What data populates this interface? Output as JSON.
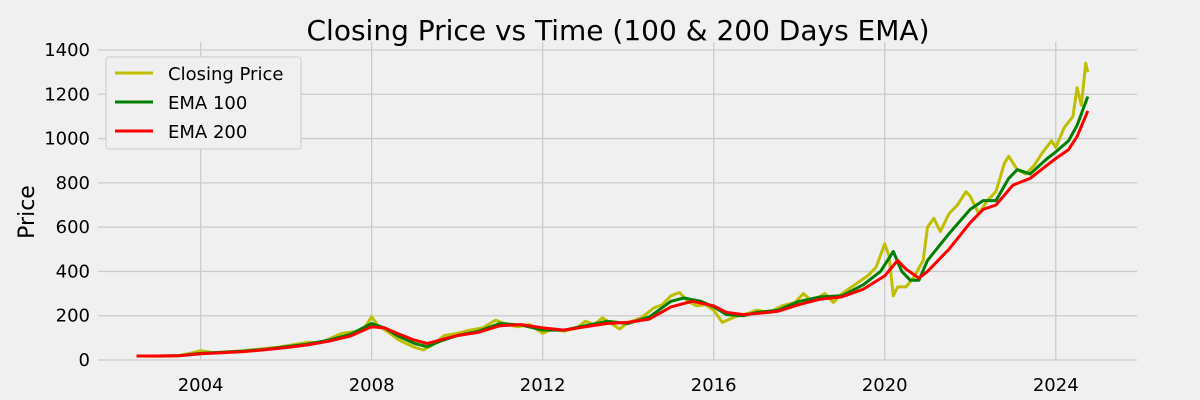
{
  "chart_data": {
    "type": "line",
    "title": "Closing Price vs Time (100 & 200 Days EMA)",
    "xlabel": "",
    "ylabel": "Price",
    "xlim": [
      2001.6,
      2025.9
    ],
    "ylim": [
      -20,
      1400
    ],
    "xticks": [
      2004,
      2008,
      2012,
      2016,
      2020,
      2024
    ],
    "yticks": [
      0,
      200,
      400,
      600,
      800,
      1000,
      1200,
      1400
    ],
    "grid": true,
    "legend": {
      "placement": "top-left",
      "entries": [
        "Closing Price",
        "EMA 100",
        "EMA 200"
      ]
    },
    "series": [
      {
        "name": "Closing Price",
        "color": "#bfbf00",
        "points": [
          [
            2002.5,
            18
          ],
          [
            2003.0,
            17
          ],
          [
            2003.5,
            20
          ],
          [
            2003.8,
            32
          ],
          [
            2004.0,
            42
          ],
          [
            2004.3,
            33
          ],
          [
            2004.7,
            38
          ],
          [
            2005.0,
            42
          ],
          [
            2005.5,
            52
          ],
          [
            2005.8,
            58
          ],
          [
            2006.2,
            70
          ],
          [
            2006.5,
            80
          ],
          [
            2006.8,
            78
          ],
          [
            2007.0,
            95
          ],
          [
            2007.3,
            120
          ],
          [
            2007.6,
            128
          ],
          [
            2007.8,
            135
          ],
          [
            2008.0,
            195
          ],
          [
            2008.15,
            155
          ],
          [
            2008.4,
            125
          ],
          [
            2008.6,
            95
          ],
          [
            2008.8,
            75
          ],
          [
            2009.0,
            58
          ],
          [
            2009.2,
            45
          ],
          [
            2009.4,
            65
          ],
          [
            2009.7,
            110
          ],
          [
            2010.0,
            120
          ],
          [
            2010.3,
            135
          ],
          [
            2010.6,
            145
          ],
          [
            2010.9,
            180
          ],
          [
            2011.1,
            165
          ],
          [
            2011.4,
            150
          ],
          [
            2011.7,
            160
          ],
          [
            2012.0,
            120
          ],
          [
            2012.2,
            140
          ],
          [
            2012.5,
            130
          ],
          [
            2012.8,
            145
          ],
          [
            2013.0,
            175
          ],
          [
            2013.2,
            160
          ],
          [
            2013.4,
            190
          ],
          [
            2013.6,
            165
          ],
          [
            2013.8,
            140
          ],
          [
            2014.0,
            170
          ],
          [
            2014.3,
            190
          ],
          [
            2014.6,
            235
          ],
          [
            2014.8,
            250
          ],
          [
            2015.0,
            290
          ],
          [
            2015.2,
            305
          ],
          [
            2015.4,
            265
          ],
          [
            2015.6,
            245
          ],
          [
            2015.8,
            250
          ],
          [
            2016.0,
            225
          ],
          [
            2016.2,
            170
          ],
          [
            2016.5,
            195
          ],
          [
            2016.8,
            210
          ],
          [
            2017.0,
            225
          ],
          [
            2017.3,
            215
          ],
          [
            2017.6,
            245
          ],
          [
            2017.9,
            260
          ],
          [
            2018.1,
            300
          ],
          [
            2018.3,
            265
          ],
          [
            2018.6,
            300
          ],
          [
            2018.8,
            260
          ],
          [
            2019.0,
            300
          ],
          [
            2019.3,
            340
          ],
          [
            2019.6,
            380
          ],
          [
            2019.8,
            420
          ],
          [
            2020.0,
            525
          ],
          [
            2020.1,
            470
          ],
          [
            2020.2,
            290
          ],
          [
            2020.3,
            330
          ],
          [
            2020.5,
            330
          ],
          [
            2020.7,
            380
          ],
          [
            2020.9,
            450
          ],
          [
            2021.0,
            600
          ],
          [
            2021.15,
            640
          ],
          [
            2021.3,
            580
          ],
          [
            2021.5,
            660
          ],
          [
            2021.7,
            700
          ],
          [
            2021.9,
            760
          ],
          [
            2022.0,
            740
          ],
          [
            2022.2,
            660
          ],
          [
            2022.4,
            720
          ],
          [
            2022.6,
            760
          ],
          [
            2022.8,
            890
          ],
          [
            2022.9,
            920
          ],
          [
            2023.1,
            860
          ],
          [
            2023.3,
            840
          ],
          [
            2023.5,
            880
          ],
          [
            2023.7,
            940
          ],
          [
            2023.9,
            990
          ],
          [
            2024.0,
            960
          ],
          [
            2024.2,
            1050
          ],
          [
            2024.4,
            1100
          ],
          [
            2024.5,
            1230
          ],
          [
            2024.6,
            1150
          ],
          [
            2024.7,
            1340
          ],
          [
            2024.75,
            1300
          ]
        ]
      },
      {
        "name": "EMA 100",
        "color": "#008000",
        "points": [
          [
            2002.5,
            18
          ],
          [
            2003.0,
            18
          ],
          [
            2003.5,
            20
          ],
          [
            2004.0,
            30
          ],
          [
            2004.5,
            35
          ],
          [
            2005.0,
            40
          ],
          [
            2005.5,
            48
          ],
          [
            2006.0,
            60
          ],
          [
            2006.5,
            72
          ],
          [
            2007.0,
            90
          ],
          [
            2007.5,
            115
          ],
          [
            2008.0,
            165
          ],
          [
            2008.3,
            145
          ],
          [
            2008.6,
            110
          ],
          [
            2009.0,
            75
          ],
          [
            2009.3,
            60
          ],
          [
            2009.6,
            85
          ],
          [
            2010.0,
            110
          ],
          [
            2010.5,
            130
          ],
          [
            2011.0,
            165
          ],
          [
            2011.5,
            158
          ],
          [
            2012.0,
            135
          ],
          [
            2012.5,
            135
          ],
          [
            2013.0,
            155
          ],
          [
            2013.5,
            175
          ],
          [
            2014.0,
            165
          ],
          [
            2014.5,
            195
          ],
          [
            2015.0,
            265
          ],
          [
            2015.3,
            280
          ],
          [
            2015.7,
            265
          ],
          [
            2016.0,
            240
          ],
          [
            2016.3,
            205
          ],
          [
            2016.7,
            200
          ],
          [
            2017.0,
            215
          ],
          [
            2017.5,
            225
          ],
          [
            2018.0,
            265
          ],
          [
            2018.5,
            285
          ],
          [
            2019.0,
            290
          ],
          [
            2019.5,
            340
          ],
          [
            2019.9,
            400
          ],
          [
            2020.2,
            490
          ],
          [
            2020.4,
            400
          ],
          [
            2020.6,
            360
          ],
          [
            2020.8,
            360
          ],
          [
            2021.0,
            450
          ],
          [
            2021.5,
            570
          ],
          [
            2022.0,
            680
          ],
          [
            2022.3,
            720
          ],
          [
            2022.6,
            720
          ],
          [
            2022.9,
            820
          ],
          [
            2023.1,
            860
          ],
          [
            2023.4,
            840
          ],
          [
            2023.8,
            910
          ],
          [
            2024.0,
            940
          ],
          [
            2024.3,
            990
          ],
          [
            2024.5,
            1060
          ],
          [
            2024.75,
            1190
          ]
        ]
      },
      {
        "name": "EMA 200",
        "color": "#ff0000",
        "points": [
          [
            2002.5,
            18
          ],
          [
            2003.0,
            18
          ],
          [
            2003.5,
            19
          ],
          [
            2004.0,
            28
          ],
          [
            2004.5,
            33
          ],
          [
            2005.0,
            38
          ],
          [
            2005.5,
            46
          ],
          [
            2006.0,
            56
          ],
          [
            2006.5,
            68
          ],
          [
            2007.0,
            85
          ],
          [
            2007.5,
            108
          ],
          [
            2008.0,
            150
          ],
          [
            2008.3,
            145
          ],
          [
            2008.6,
            120
          ],
          [
            2009.0,
            90
          ],
          [
            2009.3,
            75
          ],
          [
            2009.6,
            90
          ],
          [
            2010.0,
            110
          ],
          [
            2010.5,
            125
          ],
          [
            2011.0,
            155
          ],
          [
            2011.5,
            160
          ],
          [
            2012.0,
            145
          ],
          [
            2012.5,
            135
          ],
          [
            2013.0,
            150
          ],
          [
            2013.5,
            165
          ],
          [
            2014.0,
            170
          ],
          [
            2014.5,
            185
          ],
          [
            2015.0,
            240
          ],
          [
            2015.5,
            265
          ],
          [
            2016.0,
            245
          ],
          [
            2016.3,
            215
          ],
          [
            2016.7,
            205
          ],
          [
            2017.0,
            210
          ],
          [
            2017.5,
            220
          ],
          [
            2018.0,
            250
          ],
          [
            2018.5,
            275
          ],
          [
            2019.0,
            285
          ],
          [
            2019.5,
            320
          ],
          [
            2020.0,
            380
          ],
          [
            2020.3,
            450
          ],
          [
            2020.5,
            410
          ],
          [
            2020.8,
            370
          ],
          [
            2021.0,
            400
          ],
          [
            2021.5,
            500
          ],
          [
            2022.0,
            620
          ],
          [
            2022.3,
            680
          ],
          [
            2022.6,
            700
          ],
          [
            2023.0,
            790
          ],
          [
            2023.4,
            820
          ],
          [
            2023.8,
            880
          ],
          [
            2024.0,
            910
          ],
          [
            2024.3,
            950
          ],
          [
            2024.5,
            1010
          ],
          [
            2024.75,
            1125
          ]
        ]
      }
    ]
  }
}
